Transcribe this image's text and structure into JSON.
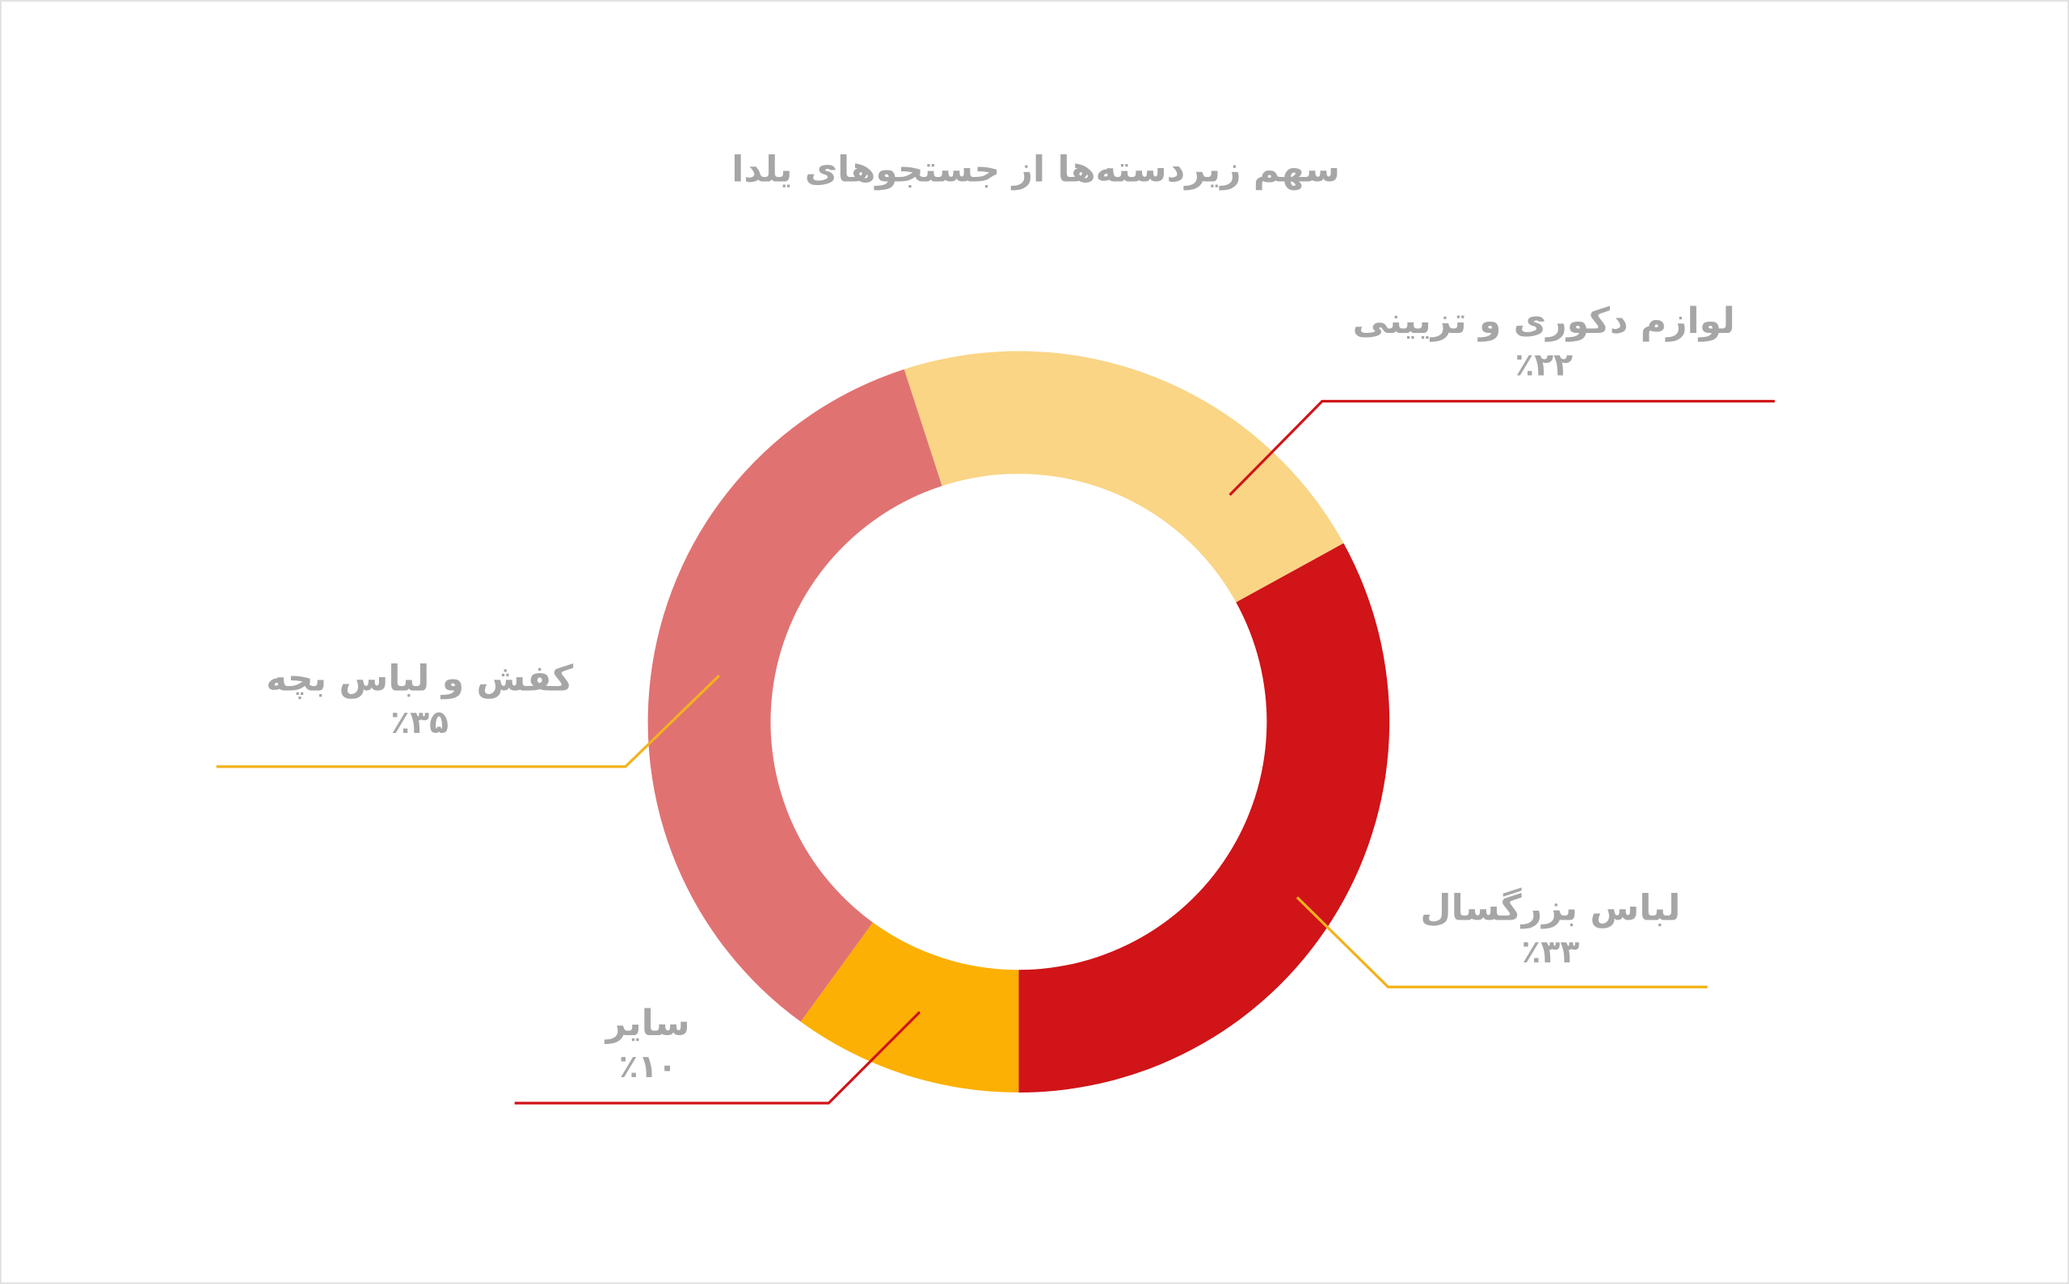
{
  "chart_data": {
    "type": "pie",
    "title": "سهم زیردسته‌ها از جستجوهای یلدا",
    "categories": [
      "لوازم دکوری و تزیینی",
      "لباس بزرگسال",
      "سایر",
      "کفش و لباس بچه"
    ],
    "values": [
      22,
      33,
      10,
      35
    ],
    "value_labels": [
      "٪۲۲",
      "٪۳۳",
      "٪۱۰",
      "٪۳۵"
    ],
    "colors": [
      "#f9d585",
      "#d01418",
      "#fbb003",
      "#e17272"
    ]
  }
}
